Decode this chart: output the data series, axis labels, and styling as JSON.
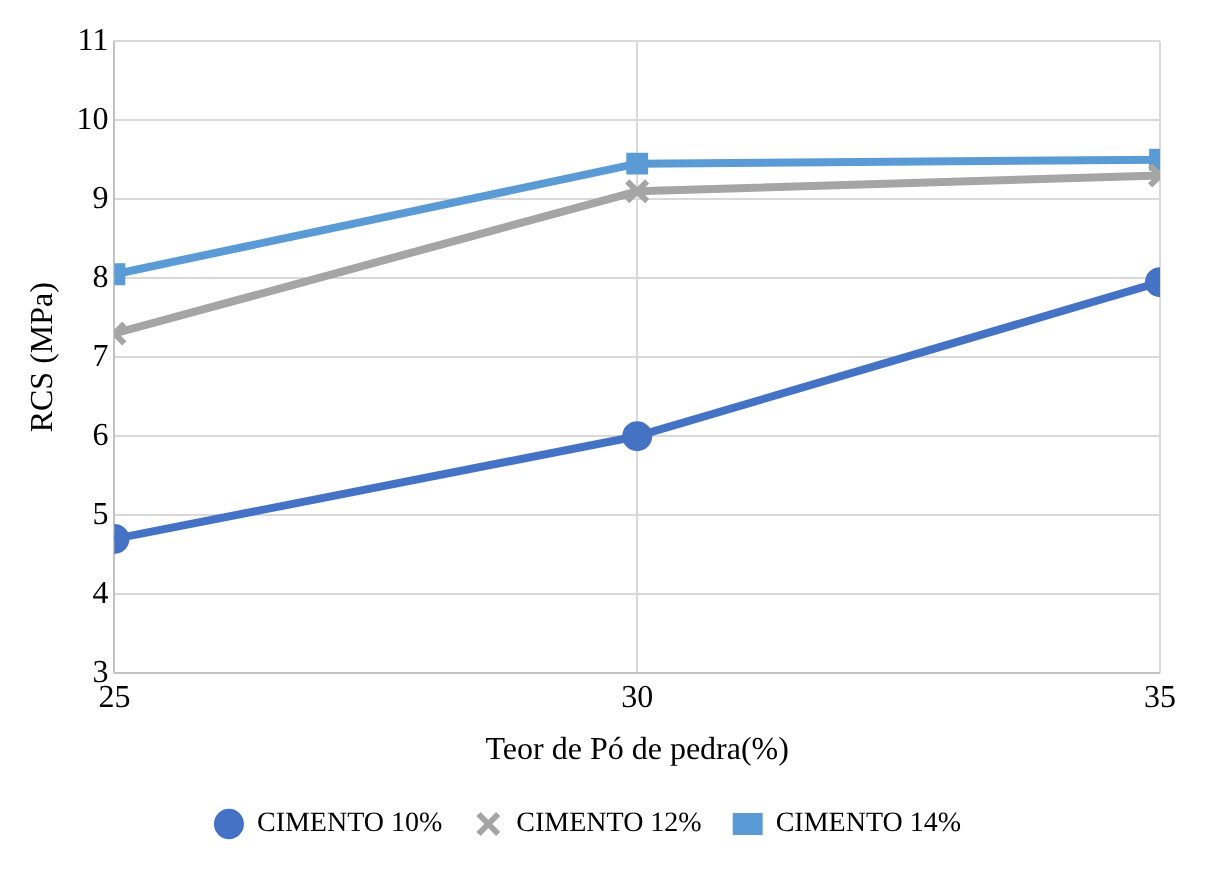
{
  "chart_data": {
    "type": "line",
    "xlabel": "Teor de Pó de pedra(%)",
    "ylabel": "RCS (MPa)",
    "x": [
      25,
      30,
      35
    ],
    "series": [
      {
        "name": "CIMENTO 10%",
        "color": "#4472c4",
        "marker": "circle",
        "values": [
          4.7,
          6.0,
          7.95
        ]
      },
      {
        "name": "CIMENTO 12%",
        "color": "#a5a5a5",
        "marker": "cross",
        "values": [
          7.3,
          9.1,
          9.3
        ]
      },
      {
        "name": "CIMENTO 14%",
        "color": "#5b9bd5",
        "marker": "square",
        "values": [
          8.05,
          9.45,
          9.5
        ]
      }
    ],
    "xlim": [
      25,
      35
    ],
    "xticks": [
      25,
      30,
      35
    ],
    "ylim": [
      3,
      11
    ],
    "yticks": [
      3,
      4,
      5,
      6,
      7,
      8,
      9,
      10,
      11
    ],
    "grid": true,
    "legend": "bottom"
  }
}
